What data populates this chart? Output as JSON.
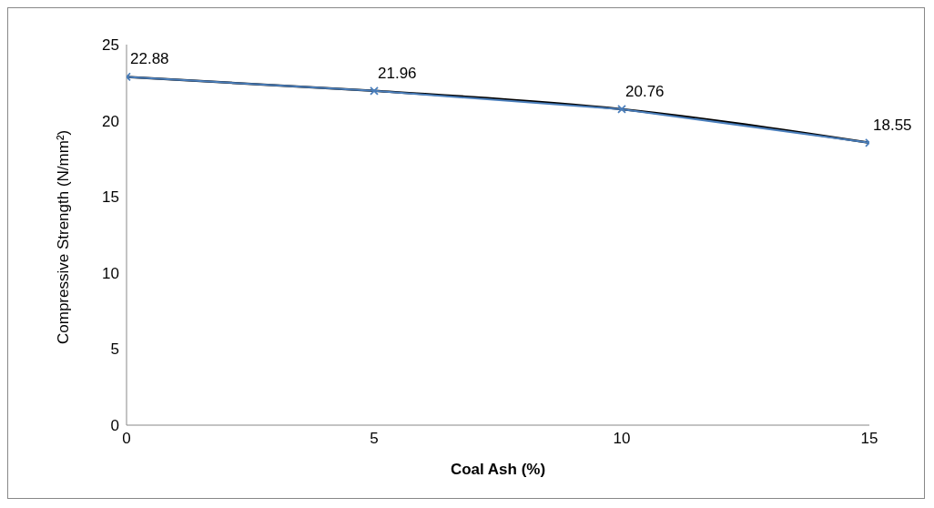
{
  "chart_data": {
    "type": "line",
    "xlabel": "Coal Ash (%)",
    "ylabel": "Compressive Strength (N/mm²)",
    "x": [
      0,
      5,
      10,
      15
    ],
    "series": [
      {
        "color": "#4a7ebb",
        "values": [
          22.88,
          21.96,
          20.76,
          18.55
        ],
        "value_labels": [
          "22.88",
          "21.96",
          "20.76",
          "18.55"
        ],
        "marker": "cross"
      },
      {
        "type": "line",
        "color": "#000000",
        "x": [
          0,
          5,
          10,
          15
        ],
        "values": [
          22.88,
          21.96,
          20.76,
          18.55
        ],
        "marker": "none"
      }
    ],
    "xlim": [
      0,
      15
    ],
    "xticks": [
      0,
      5,
      10,
      15
    ],
    "ylim": [
      0,
      25
    ],
    "yticks": [
      0,
      5,
      10,
      15,
      20,
      25
    ],
    "grid": false,
    "legend": false,
    "line_style": "solid"
  }
}
